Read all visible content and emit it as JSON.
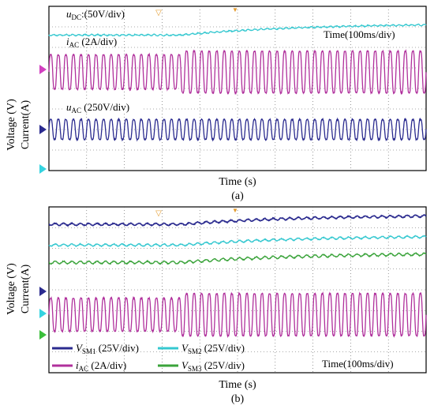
{
  "figure": {
    "panels": [
      {
        "id": "a",
        "caption": "(a)",
        "xlabel": "Time (s)",
        "ylabel_voltage": "Voltage (V)",
        "ylabel_current": "Current(A)",
        "time_scale": "Time(100ms/div)",
        "trace_labels": [
          {
            "name": "u",
            "sub": "DC",
            "scale": ":(50V/div)"
          },
          {
            "name": "i",
            "sub": "AC",
            "scale": " (2A/div)"
          },
          {
            "name": "u",
            "sub": "AC",
            "scale": " (250V/div)"
          }
        ]
      },
      {
        "id": "b",
        "caption": "(b)",
        "xlabel": "Time (s)",
        "ylabel_voltage": "Voltage (V)",
        "ylabel_current": "Current(A)",
        "time_scale": "Time(100ms/div)",
        "legend": [
          {
            "name": "V",
            "sub": "SM1",
            "scale": " (25V/div)",
            "color": "#2b2b8f"
          },
          {
            "name": "V",
            "sub": "SM2",
            "scale": " (25V/div)",
            "color": "#35c8d0"
          },
          {
            "name": "i",
            "sub": "AC",
            "scale": " (2A/div)",
            "color": "#b0309c"
          },
          {
            "name": "V",
            "sub": "SM3",
            "scale": " (25V/div)",
            "color": "#3aa33a"
          }
        ]
      }
    ]
  },
  "chart_data": [
    {
      "type": "line",
      "title": "",
      "xlabel": "Time (s)",
      "ylabel": "Voltage (V) / Current(A)",
      "grid": true,
      "x_divisions": 10,
      "y_divisions": 8,
      "step_time_div": 3.5,
      "series": [
        {
          "name": "uDC",
          "color": "#35c8d0",
          "level_before": 0.0,
          "level_after": 0.48,
          "ripple": 0.03
        },
        {
          "name": "iAC",
          "color": "#b0309c",
          "cycles": 50,
          "amp_before": 0.95,
          "amp_after": 1.15
        },
        {
          "name": "uAC",
          "color": "#2b2b8f",
          "cycles": 50,
          "amp_before": 0.55,
          "amp_after": 0.55
        }
      ]
    },
    {
      "type": "line",
      "title": "",
      "xlabel": "Time (s)",
      "ylabel": "Voltage (V) / Current(A)",
      "grid": true,
      "x_divisions": 10,
      "y_divisions": 8,
      "step_time_div": 3.5,
      "series": [
        {
          "name": "VSM1",
          "color": "#2b2b8f",
          "level_before": 0.0,
          "level_after": 0.45,
          "ripple": 0.05
        },
        {
          "name": "VSM2",
          "color": "#35c8d0",
          "level_before": 0.0,
          "level_after": 0.45,
          "ripple": 0.05
        },
        {
          "name": "VSM3",
          "color": "#3aa33a",
          "level_before": 0.0,
          "level_after": 0.45,
          "ripple": 0.06
        },
        {
          "name": "iAC",
          "color": "#b0309c",
          "cycles": 50,
          "amp_before": 0.9,
          "amp_after": 1.15
        }
      ]
    }
  ]
}
